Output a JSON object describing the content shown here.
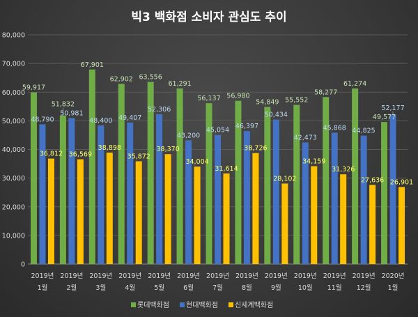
{
  "chart_data": {
    "type": "bar",
    "title": "빅3 백화점 소비자 관심도 추이",
    "xlabel": "",
    "ylabel": "",
    "ylim": [
      0,
      80000
    ],
    "yticks": [
      0,
      10000,
      20000,
      30000,
      40000,
      50000,
      60000,
      70000,
      80000
    ],
    "ytick_labels": [
      "0",
      "10,000",
      "20,000",
      "30,000",
      "40,000",
      "50,000",
      "60,000",
      "70,000",
      "80,000"
    ],
    "grid": true,
    "legend_position": "bottom",
    "categories": [
      {
        "year": "2019년",
        "month": "1월"
      },
      {
        "year": "2019년",
        "month": "2월"
      },
      {
        "year": "2019년",
        "month": "3월"
      },
      {
        "year": "2019년",
        "month": "4월"
      },
      {
        "year": "2019년",
        "month": "5월"
      },
      {
        "year": "2019년",
        "month": "6월"
      },
      {
        "year": "2019년",
        "month": "7월"
      },
      {
        "year": "2019년",
        "month": "8월"
      },
      {
        "year": "2019년",
        "month": "9월"
      },
      {
        "year": "2019년",
        "month": "10월"
      },
      {
        "year": "2019년",
        "month": "11월"
      },
      {
        "year": "2019년",
        "month": "12월"
      },
      {
        "year": "2020년",
        "month": "1월"
      }
    ],
    "series": [
      {
        "name": "롯데백화점",
        "color": "#70ad47",
        "label_color": "#c6e0b4",
        "values": [
          59917,
          51832,
          67901,
          62902,
          63556,
          61291,
          56137,
          56980,
          54849,
          55552,
          58277,
          61274,
          49577
        ],
        "labels": [
          "59,917",
          "51,832",
          "67,901",
          "62,902",
          "63,556",
          "61,291",
          "56,137",
          "56,980",
          "54,849",
          "55,552",
          "58,277",
          "61,274",
          "49,577"
        ]
      },
      {
        "name": "현대백화점",
        "color": "#4472c4",
        "label_color": "#bdd7ee",
        "values": [
          48790,
          50981,
          48400,
          49407,
          52306,
          43200,
          45054,
          46397,
          50434,
          42473,
          45868,
          44825,
          52177
        ],
        "labels": [
          "48,790",
          "50,981",
          "48,400",
          "49,407",
          "52,306",
          "43,200",
          "45,054",
          "46,397",
          "50,434",
          "42,473",
          "45,868",
          "44,825",
          "52,177"
        ]
      },
      {
        "name": "신세계백화점",
        "color": "#ffc000",
        "label_color": "#ffff66",
        "values": [
          36812,
          36569,
          38898,
          35872,
          38370,
          34004,
          31614,
          38726,
          28102,
          34159,
          31326,
          27636,
          26901
        ],
        "labels": [
          "36,812",
          "36,569",
          "38,898",
          "35,872",
          "38,370",
          "34,004",
          "31,614",
          "38,726",
          "28,102",
          "34,159",
          "31,326",
          "27,636",
          "26,901"
        ]
      }
    ]
  }
}
